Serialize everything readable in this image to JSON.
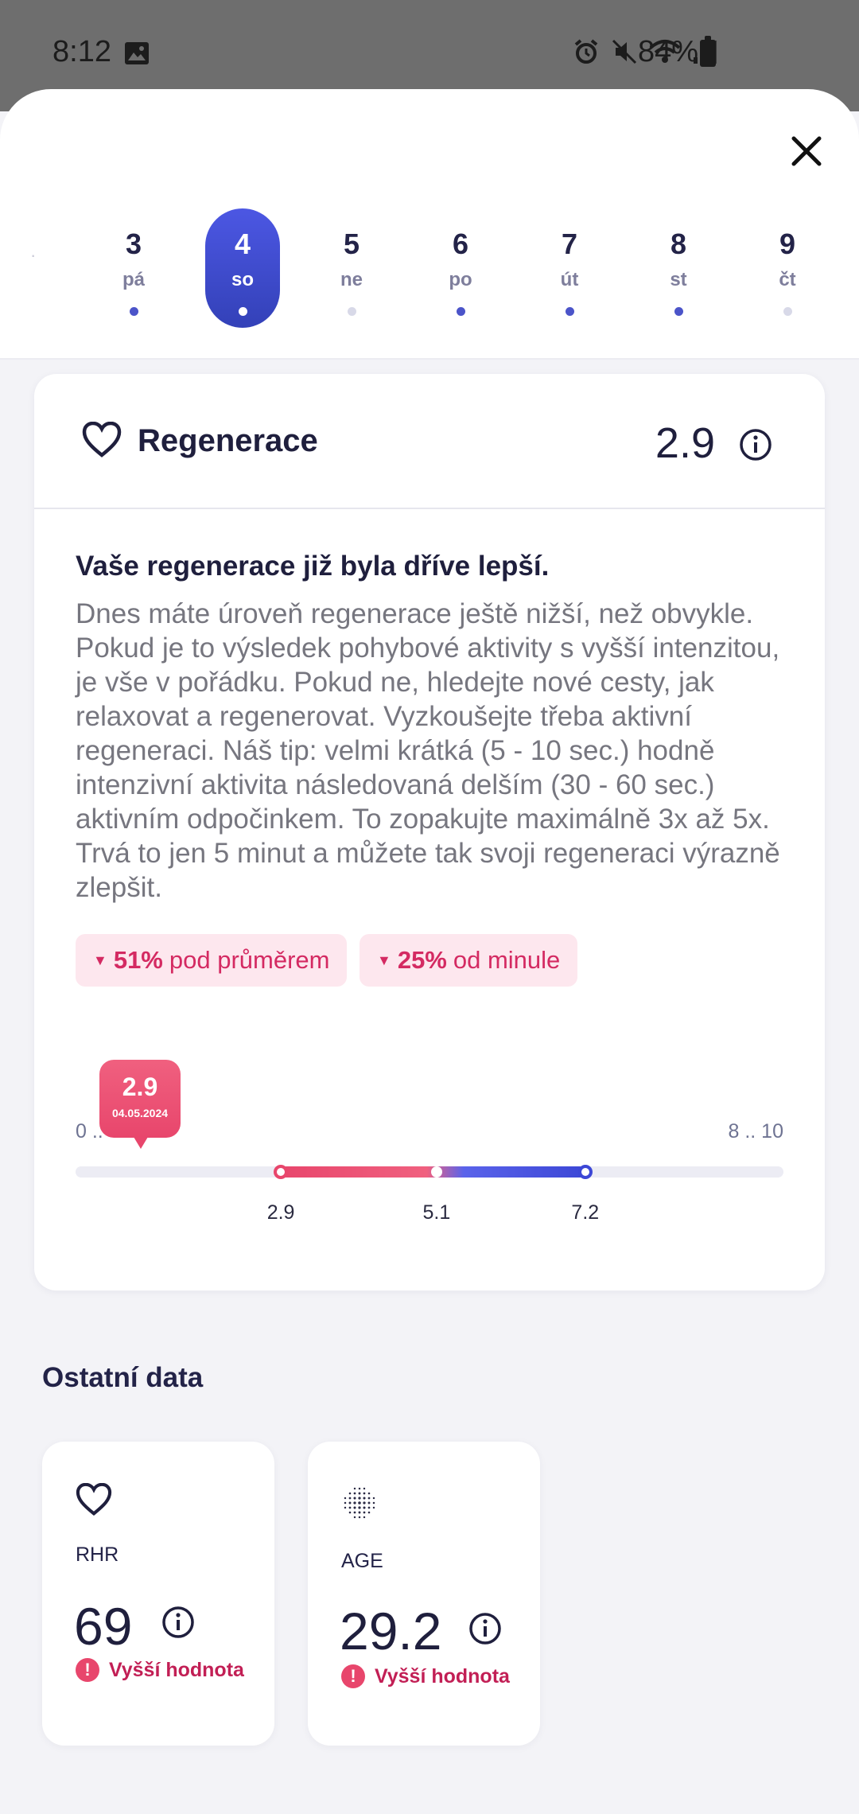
{
  "status_bar": {
    "time": "8:12",
    "battery": "84%",
    "icons": [
      "image-icon",
      "alarm-icon",
      "mute-icon",
      "wifi-icon",
      "signal-icon",
      "battery-icon"
    ]
  },
  "days": [
    {
      "num": "3",
      "wd": "pá",
      "dot": "filled",
      "selected": false
    },
    {
      "num": "4",
      "wd": "so",
      "dot": "filled",
      "selected": true
    },
    {
      "num": "5",
      "wd": "ne",
      "dot": "light",
      "selected": false
    },
    {
      "num": "6",
      "wd": "po",
      "dot": "filled",
      "selected": false
    },
    {
      "num": "7",
      "wd": "út",
      "dot": "filled",
      "selected": false
    },
    {
      "num": "8",
      "wd": "st",
      "dot": "filled",
      "selected": false
    },
    {
      "num": "9",
      "wd": "čt",
      "dot": "light",
      "selected": false
    }
  ],
  "card": {
    "title": "Regenerace",
    "value": "2.9",
    "headline": "Vaše regenerace již byla dříve lepší.",
    "description": "Dnes máte úroveň regenerace ještě nižší, než obvykle. Pokud je to výsledek pohybové aktivity s vyšší intenzitou, je vše v pořádku. Pokud ne, hledejte nové cesty, jak relaxovat a regenerovat. Vyzkoušejte třeba aktivní regeneraci. Náš tip: velmi krátká (5 - 10 sec.) hodně intenzivní aktivita následovaná delším (30 -  60 sec.) aktivním odpočinkem. To zopakujte maximálně 3x až 5x. Trvá to jen 5 minut a můžete tak svoji regeneraci výrazně zlepšit.",
    "badges": [
      {
        "pct": "51%",
        "text": "pod průměrem"
      },
      {
        "pct": "25%",
        "text": "od minule"
      }
    ],
    "scale": {
      "current_value": "2.9",
      "current_date": "04.05.2024",
      "range_low": "0 ..",
      "range_high": "8 .. 10",
      "min": 0,
      "max": 10,
      "current": 2.9,
      "ticks": [
        "2.9",
        "5.1",
        "7.2"
      ],
      "tick_values": [
        2.9,
        5.1,
        7.2
      ]
    }
  },
  "other_data": {
    "title": "Ostatní data",
    "items": [
      {
        "label": "RHR",
        "value": "69",
        "status": "Vyšší hodnota",
        "icon": "heart-icon"
      },
      {
        "label": "AGE",
        "value": "29.2",
        "status": "Vyšší hodnota",
        "icon": "dots-sphere-icon"
      }
    ]
  },
  "colors": {
    "accent": "#3c47d6",
    "negative": "#e8466c",
    "badge_bg": "#fde7ee"
  }
}
